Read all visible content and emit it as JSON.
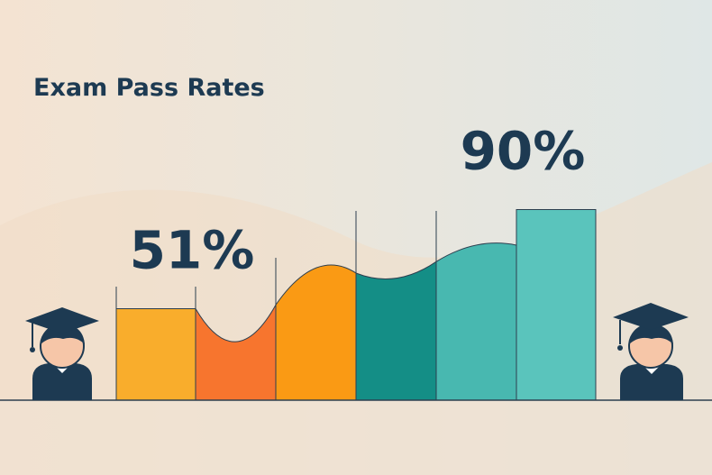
{
  "chart_data": {
    "type": "area-bar",
    "title": "Exam Pass Rates",
    "values": [
      51,
      38,
      67,
      63,
      76,
      90
    ],
    "value_labels": [
      "51%",
      null,
      null,
      null,
      null,
      "90%"
    ],
    "colors": [
      "#f9ad2c",
      "#f7752e",
      "#fa9a14",
      "#148e86",
      "#48b8b0",
      "#5ac4bc"
    ],
    "ylim": [
      15,
      95
    ]
  }
}
